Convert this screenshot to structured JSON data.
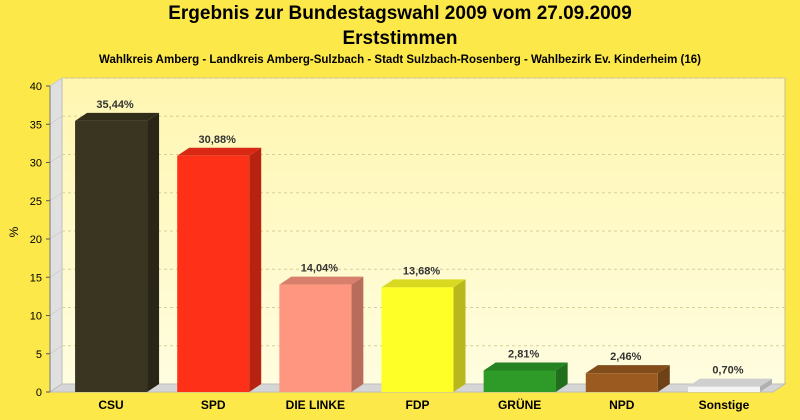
{
  "title": "Ergebnis zur Bundestagswahl 2009 vom 27.09.2009",
  "subtitle": "Erststimmen",
  "caption": "Wahlkreis Amberg - Landkreis Amberg-Sulzbach - Stadt Sulzbach-Rosenberg - Wahlbezirk Ev. Kinderheim (16)",
  "colors": {
    "background": "#fde84a",
    "plot_top": "#fff6b0",
    "plot_bottom": "#fffde0",
    "CSU": "#3a3520",
    "SPD": "#ff3018",
    "DIE LINKE": "#ff9680",
    "FDP": "#ffff28",
    "GRÜNE": "#2e9a28",
    "NPD": "#9a5a20",
    "Sonstige": "#f4f4f4"
  },
  "chart_data": {
    "type": "bar",
    "title": "Ergebnis zur Bundestagswahl 2009 vom 27.09.2009",
    "subtitle": "Erststimmen",
    "xlabel": "",
    "ylabel": "%",
    "ylim": [
      0,
      40
    ],
    "yticks": [
      0,
      5,
      10,
      15,
      20,
      25,
      30,
      35,
      40
    ],
    "grid": true,
    "categories": [
      "CSU",
      "SPD",
      "DIE LINKE",
      "FDP",
      "GRÜNE",
      "NPD",
      "Sonstige"
    ],
    "values": [
      35.44,
      30.88,
      14.04,
      13.68,
      2.81,
      2.46,
      0.7
    ],
    "data_labels": [
      "35,44%",
      "30,88%",
      "14,04%",
      "13,68%",
      "2,81%",
      "2,46%",
      "0,70%"
    ]
  }
}
